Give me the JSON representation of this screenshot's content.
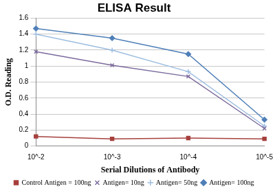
{
  "chart_data": {
    "type": "line",
    "title": "ELISA Result",
    "x_label": "Serial Dilutions of Antibody",
    "y_label": "O.D. Reading",
    "categories": [
      "10^-2",
      "10^-3",
      "10^-4",
      "10^-5"
    ],
    "series": [
      {
        "name": "Control Antigen = 100ng",
        "color": "#a5403d",
        "marker": "square",
        "values": [
          0.12,
          0.09,
          0.1,
          0.09
        ]
      },
      {
        "name": "Antigen= 10ng",
        "color": "#7b6a9c",
        "marker": "x",
        "values": [
          1.18,
          1.01,
          0.87,
          0.22
        ]
      },
      {
        "name": "Antigen= 50ng",
        "color": "#9dbde0",
        "marker": "plus",
        "values": [
          1.4,
          1.2,
          0.93,
          0.25
        ]
      },
      {
        "name": "Antigen= 100ng",
        "color": "#4f7fb8",
        "marker": "diamond",
        "values": [
          1.47,
          1.35,
          1.15,
          0.33
        ]
      }
    ],
    "ylim": [
      0,
      1.6
    ],
    "yticks": [
      0,
      0.2,
      0.4,
      0.6,
      0.8,
      1,
      1.2,
      1.4,
      1.6
    ],
    "grid": "y",
    "legend": "bottom"
  }
}
